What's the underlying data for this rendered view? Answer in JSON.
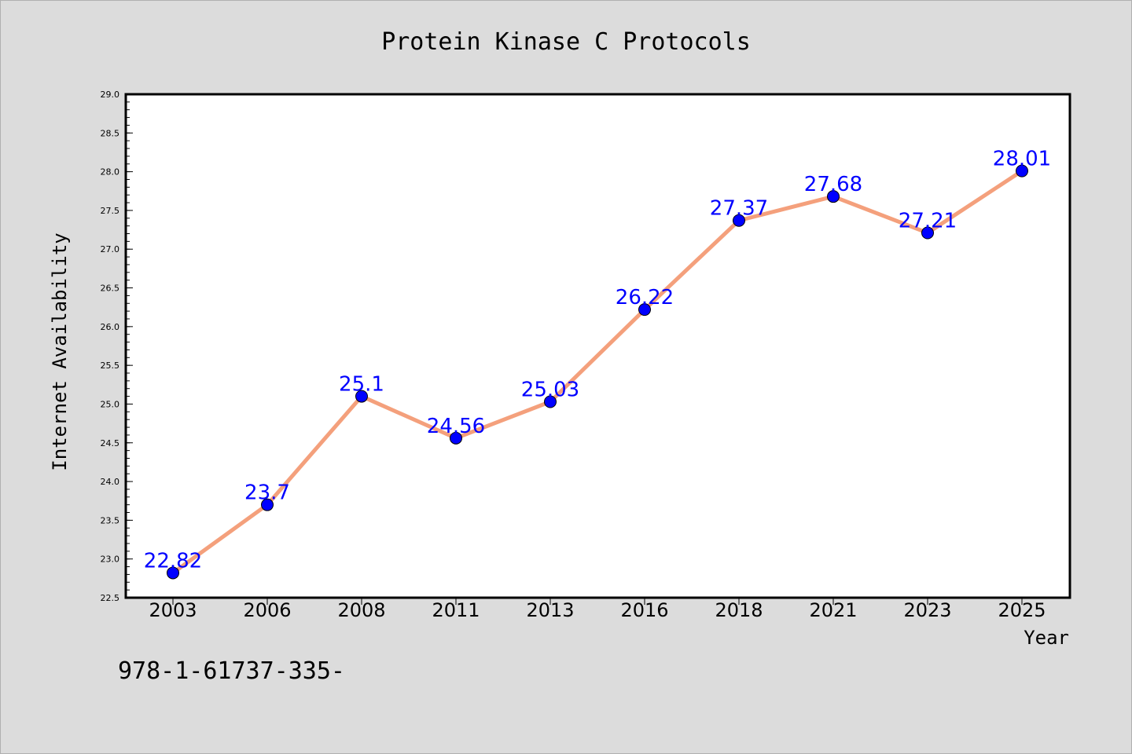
{
  "chart_data": {
    "type": "line",
    "title": "Protein Kinase C Protocols",
    "xlabel": "Year",
    "ylabel": "Internet Availability",
    "categories": [
      "2003",
      "2006",
      "2008",
      "2011",
      "2013",
      "2016",
      "2018",
      "2021",
      "2023",
      "2025"
    ],
    "series": [
      {
        "values": [
          22.82,
          23.7,
          25.1,
          24.56,
          25.03,
          26.22,
          27.37,
          27.68,
          27.21,
          28.01
        ],
        "data_labels": [
          "22.82",
          "23.7",
          "25.1",
          "24.56",
          "25.03",
          "26.22",
          "27.37",
          "27.68",
          "27.21",
          "28.01"
        ],
        "line_color": "#f4a07c",
        "marker_color": "#0000ff"
      }
    ],
    "ylim": [
      22.5,
      29.0
    ],
    "yticks": [
      "22.5",
      "23.0",
      "23.5",
      "24.0",
      "24.5",
      "25.0",
      "25.5",
      "26.0",
      "26.5",
      "27.0",
      "27.5",
      "28.0",
      "28.5",
      "29.0"
    ],
    "grid": false,
    "legend": "none"
  },
  "footer_text": "978-1-61737-335-"
}
